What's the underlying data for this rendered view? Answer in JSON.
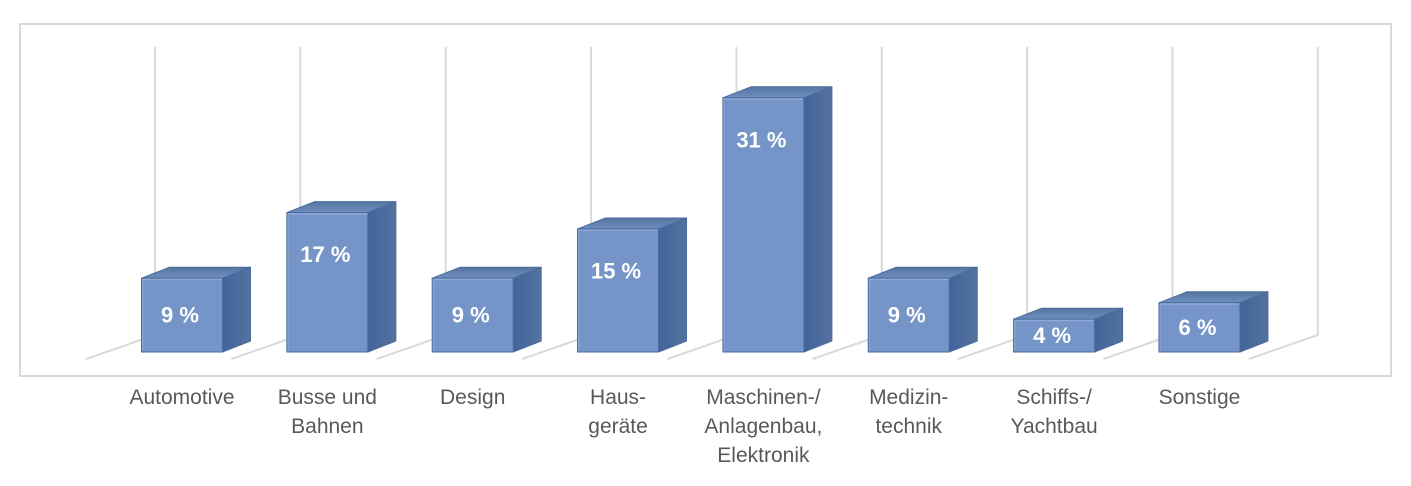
{
  "chart": {
    "background": "#ffffff",
    "border_color": "#d9d9d9",
    "gridline_color": "#d9d9d9",
    "category_label_color": "#595959",
    "value_label_color": "#ffffff",
    "bar_front_color": "#7595c9",
    "bar_top_color_back": "#55759f",
    "bar_top_color_front": "#6e8ec1",
    "bar_side_color_front": "#42649a",
    "bar_side_color_back": "#53729f",
    "bar_edge_color": "#4a6b9d",
    "bar_bevel_color": "#9cb2db"
  },
  "chart_data": {
    "type": "bar",
    "variant": "3d-column",
    "title": "",
    "xlabel": "",
    "ylabel": "",
    "unit": "%",
    "legend": "none",
    "grid": "vertical-category-gridlines",
    "axis_tick_labels": "none",
    "ylim": [
      0,
      33
    ],
    "categories": [
      "Automotive",
      "Busse und Bahnen",
      "Design",
      "Haus-geräte",
      "Maschinen-/Anlagenbau, Elektronik",
      "Medizin-technik",
      "Schiffs-/Yachtbau",
      "Sonstige"
    ],
    "category_lines": [
      [
        "Automotive"
      ],
      [
        "Busse und",
        "Bahnen"
      ],
      [
        "Design"
      ],
      [
        "Haus-",
        "geräte"
      ],
      [
        "Maschinen-/",
        "Anlagenbau,",
        "Elektronik"
      ],
      [
        "Medizin-",
        "technik"
      ],
      [
        "Schiffs-/",
        "Yachtbau"
      ],
      [
        "Sonstige"
      ]
    ],
    "values": [
      9,
      17,
      9,
      15,
      31,
      9,
      4,
      6
    ],
    "data_labels": [
      "9 %",
      "17 %",
      "9 %",
      "15 %",
      "31 %",
      "9 %",
      "4 %",
      "6 %"
    ]
  }
}
